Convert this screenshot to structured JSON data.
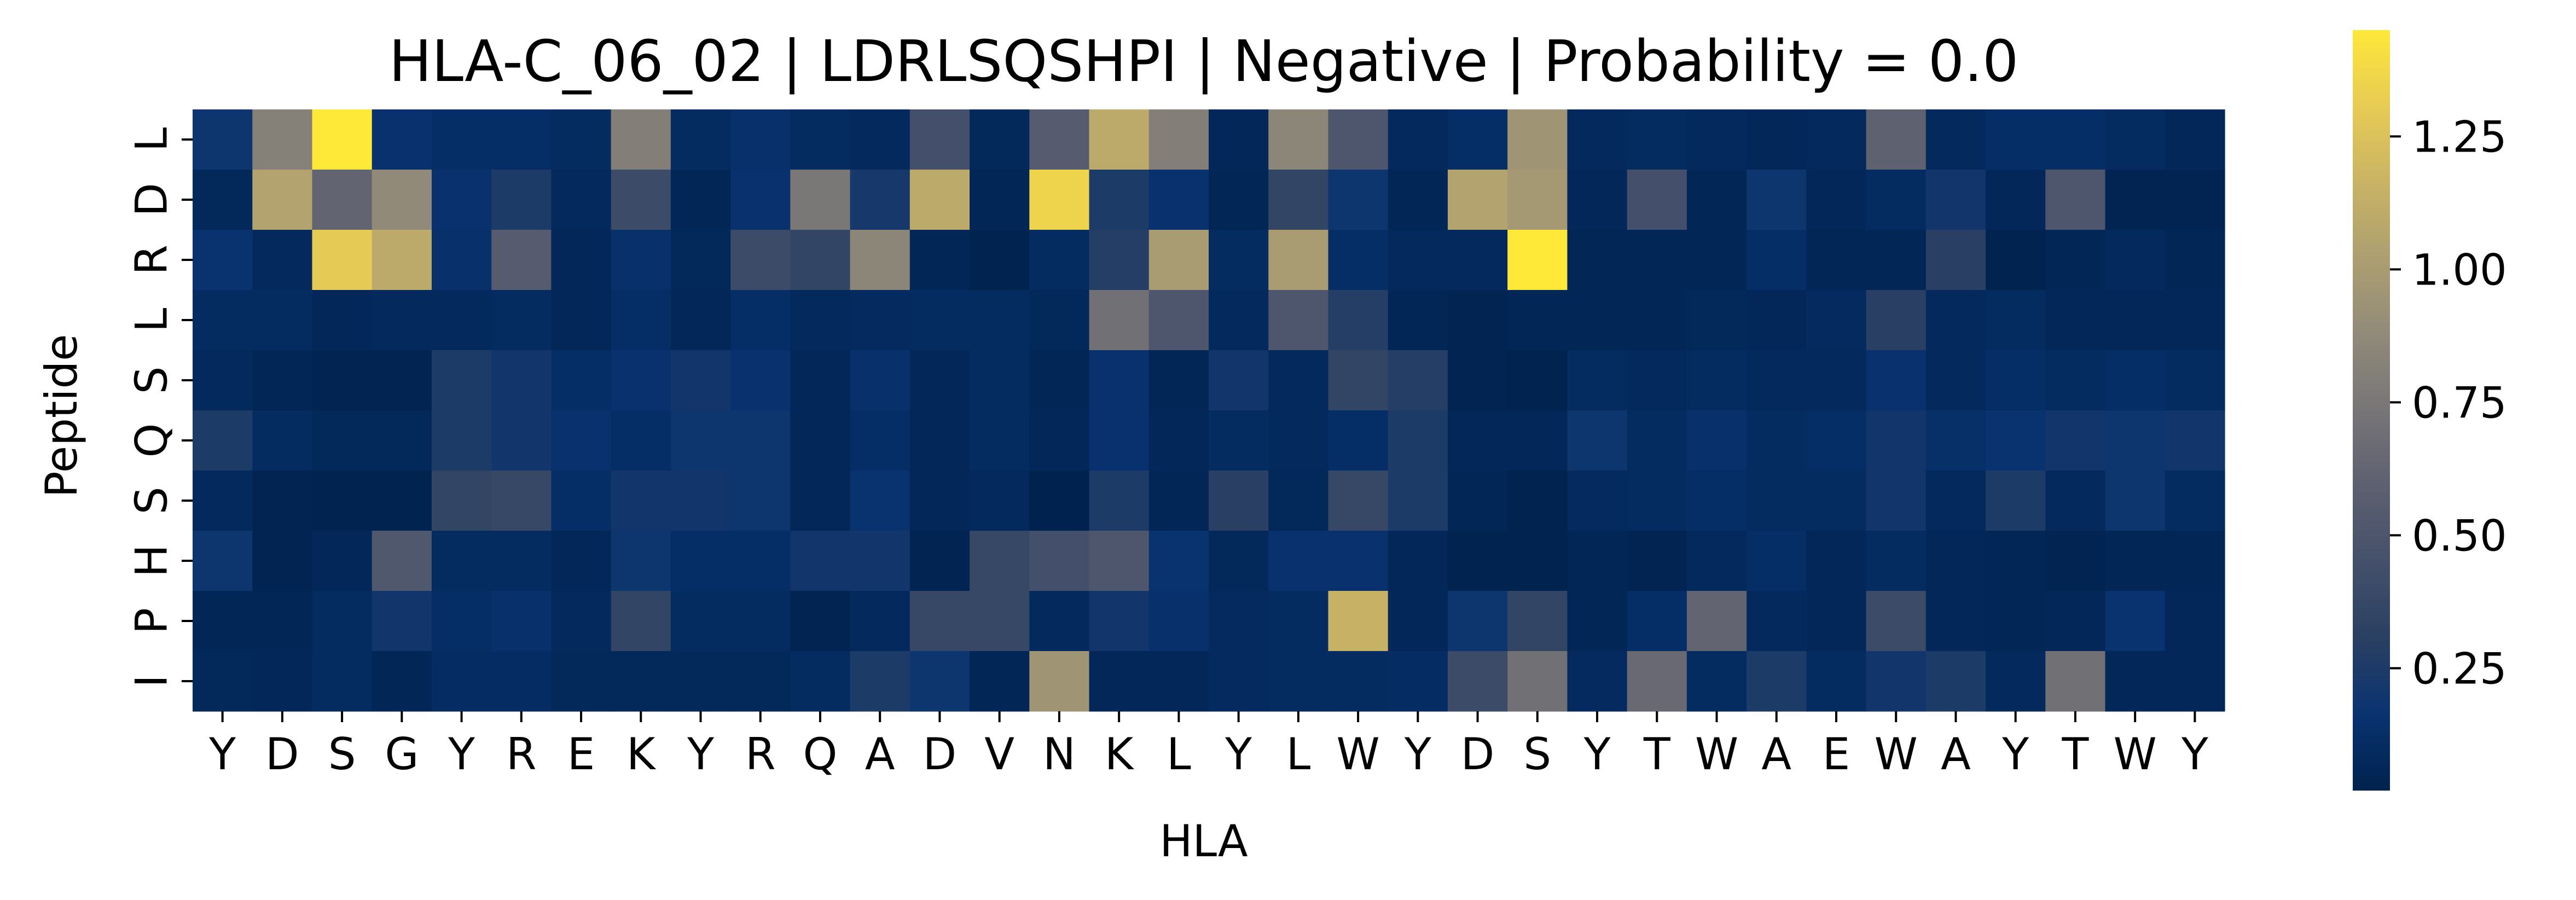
{
  "chart_data": {
    "type": "heatmap",
    "title": "HLA-C_06_02 | LDRLSQSHPI | Negative | Probability = 0.0",
    "xlabel": "HLA",
    "ylabel": "Peptide",
    "x_categories": [
      "Y",
      "D",
      "S",
      "G",
      "Y",
      "R",
      "E",
      "K",
      "Y",
      "R",
      "Q",
      "A",
      "D",
      "V",
      "N",
      "K",
      "L",
      "Y",
      "L",
      "W",
      "Y",
      "D",
      "S",
      "Y",
      "T",
      "W",
      "A",
      "E",
      "W",
      "A",
      "Y",
      "T",
      "W",
      "Y"
    ],
    "y_categories": [
      "L",
      "D",
      "R",
      "L",
      "S",
      "Q",
      "S",
      "H",
      "P",
      "I"
    ],
    "colormap": "cividis",
    "colorbar": {
      "vmin": 0.02,
      "vmax": 1.45,
      "ticks": [
        0.25,
        0.5,
        0.75,
        1.0,
        1.25
      ],
      "tick_labels": [
        "0.25",
        "0.50",
        "0.75",
        "1.00",
        "1.25"
      ]
    },
    "values": [
      [
        0.18,
        0.82,
        1.45,
        0.15,
        0.12,
        0.12,
        0.1,
        0.8,
        0.1,
        0.14,
        0.1,
        0.08,
        0.45,
        0.07,
        0.55,
        1.1,
        0.8,
        0.06,
        0.85,
        0.5,
        0.08,
        0.12,
        0.95,
        0.08,
        0.1,
        0.08,
        0.06,
        0.08,
        0.6,
        0.08,
        0.12,
        0.12,
        0.1,
        0.06
      ],
      [
        0.07,
        1.05,
        0.62,
        0.88,
        0.15,
        0.25,
        0.08,
        0.4,
        0.05,
        0.15,
        0.75,
        0.22,
        1.1,
        0.05,
        1.35,
        0.25,
        0.15,
        0.05,
        0.35,
        0.18,
        0.05,
        1.05,
        0.98,
        0.06,
        0.45,
        0.05,
        0.18,
        0.06,
        0.1,
        0.2,
        0.06,
        0.5,
        0.04,
        0.04
      ],
      [
        0.16,
        0.08,
        1.3,
        1.1,
        0.14,
        0.55,
        0.06,
        0.14,
        0.07,
        0.4,
        0.35,
        0.85,
        0.05,
        0.03,
        0.1,
        0.28,
        1.0,
        0.1,
        1.0,
        0.12,
        0.08,
        0.08,
        1.45,
        0.05,
        0.05,
        0.05,
        0.12,
        0.05,
        0.05,
        0.3,
        0.03,
        0.05,
        0.08,
        0.05
      ],
      [
        0.1,
        0.1,
        0.06,
        0.08,
        0.08,
        0.1,
        0.06,
        0.12,
        0.06,
        0.12,
        0.08,
        0.09,
        0.1,
        0.1,
        0.07,
        0.7,
        0.5,
        0.08,
        0.5,
        0.28,
        0.05,
        0.04,
        0.05,
        0.05,
        0.05,
        0.07,
        0.06,
        0.09,
        0.3,
        0.08,
        0.1,
        0.06,
        0.06,
        0.06
      ],
      [
        0.08,
        0.05,
        0.04,
        0.04,
        0.25,
        0.2,
        0.12,
        0.15,
        0.2,
        0.15,
        0.06,
        0.14,
        0.06,
        0.1,
        0.05,
        0.15,
        0.05,
        0.2,
        0.08,
        0.35,
        0.28,
        0.04,
        0.03,
        0.1,
        0.08,
        0.1,
        0.08,
        0.08,
        0.15,
        0.08,
        0.12,
        0.1,
        0.12,
        0.1
      ],
      [
        0.25,
        0.1,
        0.07,
        0.07,
        0.25,
        0.2,
        0.15,
        0.12,
        0.18,
        0.18,
        0.06,
        0.12,
        0.06,
        0.1,
        0.06,
        0.15,
        0.06,
        0.1,
        0.08,
        0.12,
        0.25,
        0.06,
        0.06,
        0.18,
        0.1,
        0.14,
        0.1,
        0.12,
        0.2,
        0.13,
        0.16,
        0.2,
        0.18,
        0.2
      ],
      [
        0.08,
        0.04,
        0.03,
        0.03,
        0.35,
        0.38,
        0.12,
        0.2,
        0.2,
        0.18,
        0.06,
        0.16,
        0.06,
        0.08,
        0.02,
        0.25,
        0.05,
        0.3,
        0.07,
        0.38,
        0.25,
        0.05,
        0.03,
        0.09,
        0.1,
        0.12,
        0.1,
        0.1,
        0.2,
        0.08,
        0.25,
        0.08,
        0.18,
        0.1
      ],
      [
        0.18,
        0.04,
        0.06,
        0.52,
        0.1,
        0.1,
        0.06,
        0.18,
        0.12,
        0.12,
        0.2,
        0.2,
        0.04,
        0.38,
        0.45,
        0.5,
        0.16,
        0.07,
        0.15,
        0.15,
        0.06,
        0.03,
        0.03,
        0.05,
        0.04,
        0.08,
        0.12,
        0.06,
        0.1,
        0.06,
        0.05,
        0.04,
        0.05,
        0.05
      ],
      [
        0.05,
        0.05,
        0.1,
        0.2,
        0.12,
        0.14,
        0.08,
        0.35,
        0.1,
        0.1,
        0.04,
        0.08,
        0.38,
        0.38,
        0.08,
        0.2,
        0.14,
        0.09,
        0.1,
        1.15,
        0.06,
        0.18,
        0.35,
        0.05,
        0.12,
        0.62,
        0.08,
        0.06,
        0.4,
        0.06,
        0.05,
        0.06,
        0.16,
        0.06
      ],
      [
        0.07,
        0.06,
        0.1,
        0.05,
        0.11,
        0.11,
        0.07,
        0.07,
        0.07,
        0.07,
        0.1,
        0.25,
        0.18,
        0.05,
        0.95,
        0.06,
        0.06,
        0.09,
        0.1,
        0.1,
        0.11,
        0.4,
        0.7,
        0.09,
        0.65,
        0.1,
        0.25,
        0.1,
        0.2,
        0.25,
        0.08,
        0.7,
        0.06,
        0.06
      ]
    ]
  }
}
